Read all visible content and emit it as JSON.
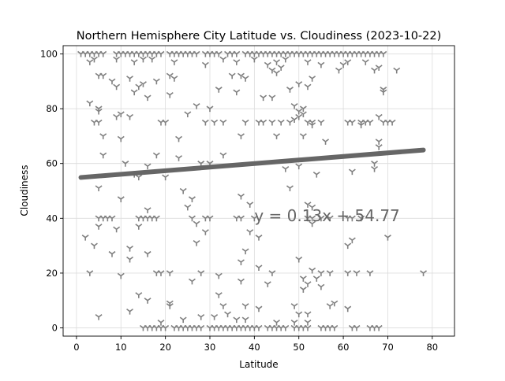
{
  "chart_data": {
    "type": "scatter",
    "title": "Northern Hemisphere City Latitude vs. Cloudiness (2023-10-22)",
    "xlabel": "Latitude",
    "ylabel": "Cloudiness",
    "xlim": [
      -3,
      85
    ],
    "ylim": [
      -3,
      103
    ],
    "xticks": [
      0,
      10,
      20,
      30,
      40,
      50,
      60,
      70,
      80
    ],
    "yticks": [
      0,
      20,
      40,
      60,
      80,
      100
    ],
    "grid": true,
    "marker": "tri_down",
    "marker_color": "#808080",
    "line_color": "#666666",
    "regression": {
      "equation": "y = 0.13x + 54.77",
      "slope": 0.13,
      "intercept": 54.77,
      "x_range": [
        1,
        78
      ],
      "annotation_at": [
        40,
        41
      ]
    },
    "points": [
      [
        1,
        100
      ],
      [
        2,
        100
      ],
      [
        3,
        100
      ],
      [
        4,
        100
      ],
      [
        5,
        100
      ],
      [
        6,
        100
      ],
      [
        9,
        100
      ],
      [
        10,
        100
      ],
      [
        11,
        100
      ],
      [
        12,
        100
      ],
      [
        13,
        100
      ],
      [
        14,
        100
      ],
      [
        15,
        100
      ],
      [
        16,
        100
      ],
      [
        17,
        100
      ],
      [
        18,
        100
      ],
      [
        19,
        100
      ],
      [
        21,
        100
      ],
      [
        22,
        100
      ],
      [
        23,
        100
      ],
      [
        24,
        100
      ],
      [
        25,
        100
      ],
      [
        26,
        100
      ],
      [
        27,
        100
      ],
      [
        29,
        100
      ],
      [
        30,
        100
      ],
      [
        31,
        100
      ],
      [
        32,
        100
      ],
      [
        34,
        100
      ],
      [
        35,
        100
      ],
      [
        36,
        100
      ],
      [
        38,
        100
      ],
      [
        39,
        100
      ],
      [
        40,
        100
      ],
      [
        41,
        100
      ],
      [
        42,
        100
      ],
      [
        43,
        100
      ],
      [
        44,
        100
      ],
      [
        45,
        100
      ],
      [
        46,
        100
      ],
      [
        47,
        100
      ],
      [
        48,
        100
      ],
      [
        49,
        100
      ],
      [
        50,
        100
      ],
      [
        51,
        100
      ],
      [
        52,
        100
      ],
      [
        53,
        100
      ],
      [
        54,
        100
      ],
      [
        55,
        100
      ],
      [
        56,
        100
      ],
      [
        57,
        100
      ],
      [
        58,
        100
      ],
      [
        59,
        100
      ],
      [
        60,
        100
      ],
      [
        61,
        100
      ],
      [
        62,
        100
      ],
      [
        63,
        100
      ],
      [
        64,
        100
      ],
      [
        65,
        100
      ],
      [
        66,
        100
      ],
      [
        67,
        100
      ],
      [
        68,
        100
      ],
      [
        69,
        100
      ],
      [
        3,
        97
      ],
      [
        4,
        98
      ],
      [
        9,
        98
      ],
      [
        13,
        97
      ],
      [
        15,
        98
      ],
      [
        17,
        98
      ],
      [
        22,
        97
      ],
      [
        33,
        98
      ],
      [
        36,
        97
      ],
      [
        40,
        98
      ],
      [
        45,
        97
      ],
      [
        47,
        98
      ],
      [
        52,
        97
      ],
      [
        55,
        96
      ],
      [
        60,
        96
      ],
      [
        61,
        97
      ],
      [
        65,
        97
      ],
      [
        68,
        95
      ],
      [
        72,
        94
      ],
      [
        5,
        92
      ],
      [
        6,
        92
      ],
      [
        8,
        90
      ],
      [
        12,
        91
      ],
      [
        15,
        89
      ],
      [
        18,
        90
      ],
      [
        21,
        92
      ],
      [
        22,
        91
      ],
      [
        29,
        96
      ],
      [
        35,
        92
      ],
      [
        37,
        92
      ],
      [
        38,
        91
      ],
      [
        43,
        96
      ],
      [
        44,
        94
      ],
      [
        45,
        93
      ],
      [
        46,
        95
      ],
      [
        53,
        91
      ],
      [
        59,
        94
      ],
      [
        67,
        94
      ],
      [
        69,
        87
      ],
      [
        69,
        86
      ],
      [
        14,
        88
      ],
      [
        9,
        88
      ],
      [
        13,
        86
      ],
      [
        21,
        85
      ],
      [
        32,
        87
      ],
      [
        36,
        86
      ],
      [
        42,
        84
      ],
      [
        48,
        87
      ],
      [
        50,
        89
      ],
      [
        52,
        88
      ],
      [
        5,
        80
      ],
      [
        3,
        82
      ],
      [
        5,
        79
      ],
      [
        10,
        78
      ],
      [
        9,
        77
      ],
      [
        12,
        77
      ],
      [
        16,
        84
      ],
      [
        25,
        78
      ],
      [
        27,
        81
      ],
      [
        30,
        80
      ],
      [
        44,
        84
      ],
      [
        49,
        81
      ],
      [
        50,
        79
      ],
      [
        51,
        80
      ],
      [
        51,
        78
      ],
      [
        4,
        75
      ],
      [
        5,
        75
      ],
      [
        19,
        75
      ],
      [
        20,
        75
      ],
      [
        29,
        75
      ],
      [
        31,
        75
      ],
      [
        33,
        75
      ],
      [
        38,
        75
      ],
      [
        41,
        75
      ],
      [
        42,
        75
      ],
      [
        44,
        75
      ],
      [
        46,
        75
      ],
      [
        48,
        75
      ],
      [
        52,
        75
      ],
      [
        53,
        75
      ],
      [
        55,
        75
      ],
      [
        61,
        75
      ],
      [
        62,
        75
      ],
      [
        64,
        75
      ],
      [
        65,
        75
      ],
      [
        66,
        75
      ],
      [
        69,
        75
      ],
      [
        70,
        75
      ],
      [
        71,
        75
      ],
      [
        53,
        74
      ],
      [
        64,
        74
      ],
      [
        68,
        77
      ],
      [
        50,
        77
      ],
      [
        49,
        76
      ],
      [
        6,
        70
      ],
      [
        10,
        69
      ],
      [
        23,
        69
      ],
      [
        37,
        70
      ],
      [
        45,
        70
      ],
      [
        51,
        70
      ],
      [
        56,
        68
      ],
      [
        68,
        68
      ],
      [
        68,
        66
      ],
      [
        6,
        63
      ],
      [
        18,
        63
      ],
      [
        23,
        62
      ],
      [
        33,
        63
      ],
      [
        11,
        60
      ],
      [
        16,
        59
      ],
      [
        28,
        60
      ],
      [
        30,
        60
      ],
      [
        47,
        58
      ],
      [
        50,
        59
      ],
      [
        54,
        56
      ],
      [
        62,
        57
      ],
      [
        67,
        58
      ],
      [
        67,
        60
      ],
      [
        14,
        55
      ],
      [
        13,
        56
      ],
      [
        20,
        55
      ],
      [
        24,
        50
      ],
      [
        26,
        47
      ],
      [
        5,
        51
      ],
      [
        10,
        47
      ],
      [
        37,
        48
      ],
      [
        48,
        51
      ],
      [
        52,
        45
      ],
      [
        53,
        44
      ],
      [
        16,
        43
      ],
      [
        25,
        44
      ],
      [
        39,
        45
      ],
      [
        5,
        40
      ],
      [
        6,
        40
      ],
      [
        7,
        40
      ],
      [
        8,
        40
      ],
      [
        14,
        40
      ],
      [
        15,
        40
      ],
      [
        16,
        40
      ],
      [
        17,
        40
      ],
      [
        18,
        40
      ],
      [
        26,
        40
      ],
      [
        29,
        40
      ],
      [
        30,
        40
      ],
      [
        36,
        40
      ],
      [
        37,
        40
      ],
      [
        40,
        40
      ],
      [
        52,
        40
      ],
      [
        53,
        40
      ],
      [
        55,
        40
      ],
      [
        57,
        40
      ],
      [
        61,
        40
      ],
      [
        62,
        40
      ],
      [
        64,
        40
      ],
      [
        5,
        37
      ],
      [
        9,
        36
      ],
      [
        14,
        37
      ],
      [
        27,
        38
      ],
      [
        29,
        35
      ],
      [
        39,
        35
      ],
      [
        41,
        33
      ],
      [
        53,
        38
      ],
      [
        2,
        33
      ],
      [
        4,
        30
      ],
      [
        12,
        29
      ],
      [
        38,
        28
      ],
      [
        61,
        30
      ],
      [
        62,
        32
      ],
      [
        70,
        33
      ],
      [
        8,
        27
      ],
      [
        12,
        25
      ],
      [
        16,
        27
      ],
      [
        27,
        31
      ],
      [
        37,
        24
      ],
      [
        41,
        22
      ],
      [
        50,
        25
      ],
      [
        3,
        20
      ],
      [
        10,
        19
      ],
      [
        18,
        20
      ],
      [
        19,
        20
      ],
      [
        21,
        20
      ],
      [
        28,
        20
      ],
      [
        32,
        19
      ],
      [
        37,
        17
      ],
      [
        44,
        20
      ],
      [
        51,
        18
      ],
      [
        52,
        16
      ],
      [
        53,
        21
      ],
      [
        54,
        18
      ],
      [
        55,
        20
      ],
      [
        57,
        20
      ],
      [
        61,
        20
      ],
      [
        63,
        20
      ],
      [
        66,
        20
      ],
      [
        78,
        20
      ],
      [
        26,
        17
      ],
      [
        43,
        16
      ],
      [
        55,
        15
      ],
      [
        51,
        14
      ],
      [
        14,
        12
      ],
      [
        16,
        10
      ],
      [
        21,
        9
      ],
      [
        21,
        8
      ],
      [
        32,
        12
      ],
      [
        33,
        8
      ],
      [
        38,
        8
      ],
      [
        41,
        7
      ],
      [
        49,
        8
      ],
      [
        57,
        8
      ],
      [
        58,
        9
      ],
      [
        61,
        7
      ],
      [
        50,
        5
      ],
      [
        52,
        5
      ],
      [
        5,
        4
      ],
      [
        24,
        3
      ],
      [
        28,
        4
      ],
      [
        31,
        4
      ],
      [
        38,
        3
      ],
      [
        12,
        6
      ],
      [
        19,
        2
      ],
      [
        34,
        5
      ],
      [
        36,
        3
      ],
      [
        45,
        2
      ],
      [
        49,
        2
      ],
      [
        52,
        2
      ],
      [
        15,
        0
      ],
      [
        16,
        0
      ],
      [
        17,
        0
      ],
      [
        18,
        0
      ],
      [
        19,
        0
      ],
      [
        20,
        0
      ],
      [
        22,
        0
      ],
      [
        23,
        0
      ],
      [
        24,
        0
      ],
      [
        25,
        0
      ],
      [
        26,
        0
      ],
      [
        27,
        0
      ],
      [
        28,
        0
      ],
      [
        30,
        0
      ],
      [
        31,
        0
      ],
      [
        32,
        0
      ],
      [
        33,
        0
      ],
      [
        34,
        0
      ],
      [
        35,
        0
      ],
      [
        36,
        0
      ],
      [
        37,
        0
      ],
      [
        38,
        0
      ],
      [
        39,
        0
      ],
      [
        40,
        0
      ],
      [
        41,
        0
      ],
      [
        43,
        0
      ],
      [
        44,
        0
      ],
      [
        45,
        0
      ],
      [
        46,
        0
      ],
      [
        47,
        0
      ],
      [
        49,
        0
      ],
      [
        50,
        0
      ],
      [
        51,
        0
      ],
      [
        52,
        0
      ],
      [
        55,
        0
      ],
      [
        56,
        0
      ],
      [
        57,
        0
      ],
      [
        58,
        0
      ],
      [
        62,
        0
      ],
      [
        63,
        0
      ],
      [
        66,
        0
      ],
      [
        67,
        0
      ],
      [
        68,
        0
      ]
    ]
  }
}
